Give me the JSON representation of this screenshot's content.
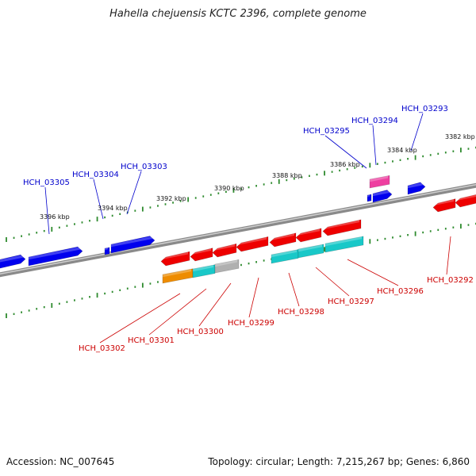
{
  "title": "Hahella chejuensis KCTC 2396, complete genome",
  "footer": {
    "accession": "Accession: NC_007645",
    "summary": "Topology: circular; Length: 7,215,267 bp; Genes: 6,860"
  },
  "colors": {
    "backbone": "#8a8a8a",
    "ticks": "#2e8b2e",
    "forward_gene": "#0000ee",
    "reverse_gene": "#ee0000",
    "cyan_gene": "#19c8c8",
    "magenta_gene": "#ee3fa0",
    "orange_gene": "#ee8c00",
    "gray_gene": "#b0b0b0",
    "label_forward": "#0000cc",
    "label_reverse": "#cc0000"
  },
  "tick_labels": [
    "3396 kbp",
    "3394 kbp",
    "3392 kbp",
    "3390 kbp",
    "3388 kbp",
    "3386 kbp",
    "3384 kbp",
    "3382 kbp"
  ],
  "genes_top": [
    "HCH_03305",
    "HCH_03304",
    "HCH_03303",
    "HCH_03295",
    "HCH_03294",
    "HCH_03293"
  ],
  "genes_bottom": [
    "HCH_03302",
    "HCH_03301",
    "HCH_03300",
    "HCH_03299",
    "HCH_03298",
    "HCH_03297",
    "HCH_03296",
    "HCH_03292"
  ]
}
